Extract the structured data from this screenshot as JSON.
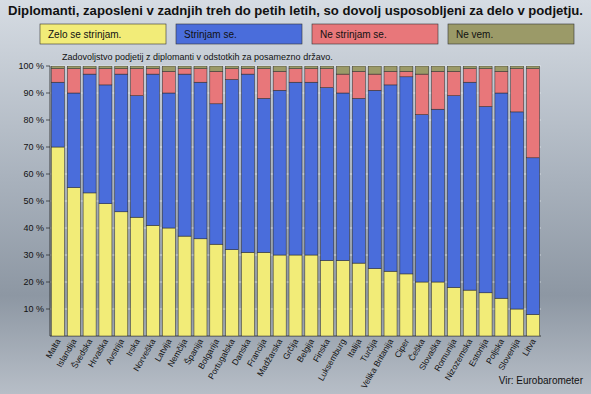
{
  "chart_data": {
    "type": "bar",
    "stacked": true,
    "grid": true,
    "legend": "top",
    "title": "Diplomanti, zaposleni v zadnjih treh do petih letih, so dovolj usposobljeni za delo v podjetju.",
    "subtitle": "Zadovoljstvo podjetij z diplomanti v odstotkih za posamezno državo.",
    "annotations": [
      "Vir: Eurobarometer"
    ],
    "categories": [
      "Malta",
      "Islandija",
      "Švedska",
      "Hrvaška",
      "Avstrija",
      "Irska",
      "Norveška",
      "Latvija",
      "Nemčija",
      "Španija",
      "Bolgarija",
      "Portugalska",
      "Danska",
      "Francija",
      "Madžarska",
      "Grčija",
      "Belgija",
      "Finska",
      "Luksemburg",
      "Italija",
      "Turčija",
      "Velika Britanija",
      "Ciper",
      "Češka",
      "Slovaška",
      "Romunija",
      "Nizozemska",
      "Estonija",
      "Poljska",
      "Slovenija",
      "Litva"
    ],
    "series": [
      {
        "name": "Zelo se strinjam.",
        "color": "#f2ec78",
        "values": [
          70,
          55,
          53,
          49,
          46,
          44,
          41,
          40,
          37,
          36,
          34,
          32,
          31,
          31,
          30,
          30,
          30,
          28,
          28,
          27,
          25,
          24,
          23,
          20,
          20,
          18,
          17,
          16,
          14,
          10,
          8
        ]
      },
      {
        "name": "Strinjam se.",
        "color": "#4a6ddb",
        "values": [
          24,
          35,
          44,
          44,
          51,
          45,
          56,
          50,
          60,
          58,
          52,
          63,
          66,
          57,
          61,
          64,
          64,
          64,
          62,
          61,
          66,
          69,
          73,
          62,
          64,
          71,
          77,
          69,
          76,
          73,
          58
        ]
      },
      {
        "name": "Ne strinjam se.",
        "color": "#e8777a",
        "values": [
          5,
          9,
          2,
          6,
          2,
          10,
          2,
          8,
          2,
          5,
          12,
          4,
          2,
          11,
          7,
          5,
          5,
          7,
          7,
          10,
          6,
          5,
          2,
          15,
          14,
          9,
          5,
          14,
          8,
          16,
          33
        ]
      },
      {
        "name": "Ne vem.",
        "color": "#9b9a68",
        "values": [
          1,
          1,
          1,
          1,
          1,
          1,
          1,
          2,
          1,
          1,
          2,
          1,
          1,
          1,
          2,
          1,
          1,
          1,
          3,
          2,
          3,
          2,
          2,
          3,
          2,
          2,
          1,
          1,
          2,
          1,
          1
        ]
      }
    ],
    "ylim": [
      0,
      100
    ],
    "yticks": [
      {
        "value": 10,
        "label": "10 %"
      },
      {
        "value": 20,
        "label": "20 %"
      },
      {
        "value": 30,
        "label": "30 %"
      },
      {
        "value": 40,
        "label": "40 %"
      },
      {
        "value": 50,
        "label": "50 %"
      },
      {
        "value": 60,
        "label": "60 %"
      },
      {
        "value": 70,
        "label": "70 %"
      },
      {
        "value": 80,
        "label": "80 %"
      },
      {
        "value": 90,
        "label": "90 %"
      },
      {
        "value": 100,
        "label": "100 %"
      }
    ]
  }
}
